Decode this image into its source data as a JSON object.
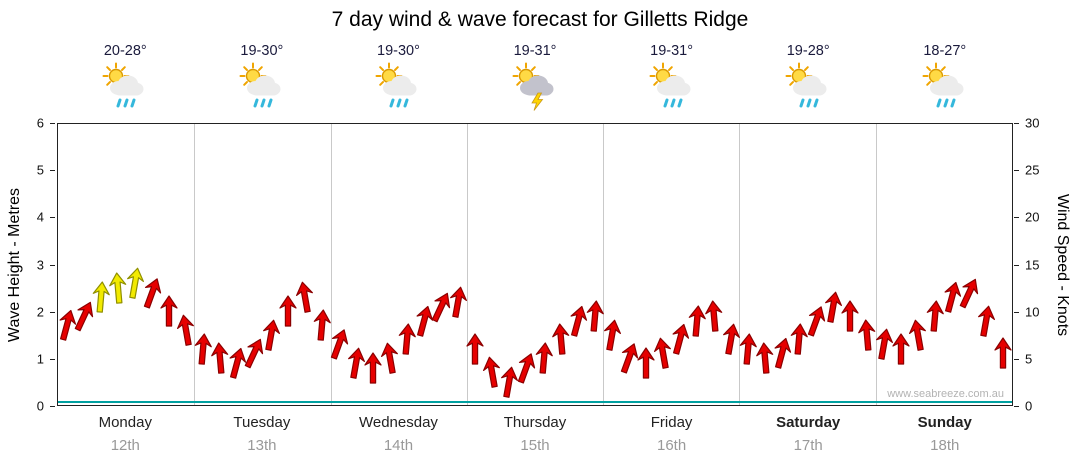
{
  "title": "7 day wind & wave forecast for Gilletts Ridge",
  "watermark": "www.seabreeze.com.au",
  "days": [
    {
      "name": "Monday",
      "date": "12th",
      "temp": "20-28°",
      "icon": "sun-cloud-rain",
      "bold": false
    },
    {
      "name": "Tuesday",
      "date": "13th",
      "temp": "19-30°",
      "icon": "sun-cloud-rain",
      "bold": false
    },
    {
      "name": "Wednesday",
      "date": "14th",
      "temp": "19-30°",
      "icon": "sun-cloud-rain",
      "bold": false
    },
    {
      "name": "Thursday",
      "date": "15th",
      "temp": "19-31°",
      "icon": "sun-cloud-storm",
      "bold": false
    },
    {
      "name": "Friday",
      "date": "16th",
      "temp": "19-31°",
      "icon": "sun-cloud-rain",
      "bold": false
    },
    {
      "name": "Saturday",
      "date": "17th",
      "temp": "19-28°",
      "icon": "sun-cloud-rain",
      "bold": true
    },
    {
      "name": "Sunday",
      "date": "18th",
      "temp": "18-27°",
      "icon": "sun-cloud-rain",
      "bold": true
    }
  ],
  "colors": {
    "arrow_red": "#E60000",
    "arrow_red_dark": "#8B0000",
    "arrow_yellow": "#F2EA00",
    "arrow_yellow_dark": "#8F8F00",
    "baseline_teal": "#00A0A0",
    "grid": "#C9C9C9"
  },
  "chart_data": {
    "type": "wind-arrow-series",
    "title": "7 day wind & wave forecast for Gilletts Ridge",
    "categories": [
      "Monday 12th",
      "Tuesday 13th",
      "Wednesday 14th",
      "Thursday 15th",
      "Friday 16th",
      "Saturday 17th",
      "Sunday 18th"
    ],
    "points_per_day": 8,
    "y_left": {
      "label": "Wave Height - Metres",
      "min": 0,
      "max": 6,
      "ticks": [
        0,
        1,
        2,
        3,
        4,
        5,
        6
      ]
    },
    "y_right": {
      "label": "Wind Speed - Knots",
      "min": 0,
      "max": 30,
      "ticks": [
        0,
        5,
        10,
        15,
        20,
        25,
        30
      ]
    },
    "wind_knots": [
      8.5,
      9.5,
      11.5,
      12.5,
      13.0,
      12.0,
      10.0,
      8.0,
      6.0,
      5.0,
      4.5,
      5.5,
      7.5,
      10.0,
      11.5,
      8.5,
      6.5,
      4.5,
      4.0,
      5.0,
      7.0,
      9.0,
      10.5,
      11.0,
      6.0,
      3.5,
      2.5,
      4.0,
      5.0,
      7.0,
      9.0,
      9.5,
      7.5,
      5.0,
      4.5,
      5.5,
      7.0,
      9.0,
      9.5,
      7.0,
      6.0,
      5.0,
      5.5,
      7.0,
      9.0,
      10.5,
      9.5,
      7.5,
      6.5,
      6.0,
      7.5,
      9.5,
      11.5,
      12.0,
      9.0,
      5.5
    ],
    "arrow_angle_deg": [
      195,
      205,
      185,
      175,
      190,
      200,
      180,
      170,
      185,
      175,
      195,
      205,
      190,
      180,
      170,
      185,
      200,
      190,
      180,
      170,
      185,
      195,
      205,
      190,
      180,
      170,
      190,
      200,
      185,
      175,
      195,
      185,
      190,
      200,
      180,
      170,
      195,
      185,
      175,
      190,
      185,
      175,
      195,
      185,
      200,
      190,
      180,
      175,
      190,
      180,
      170,
      185,
      195,
      205,
      190,
      180
    ],
    "yellow_indices": [
      2,
      3,
      4
    ],
    "grid": "vertical-day-boundaries",
    "legend": "none"
  }
}
